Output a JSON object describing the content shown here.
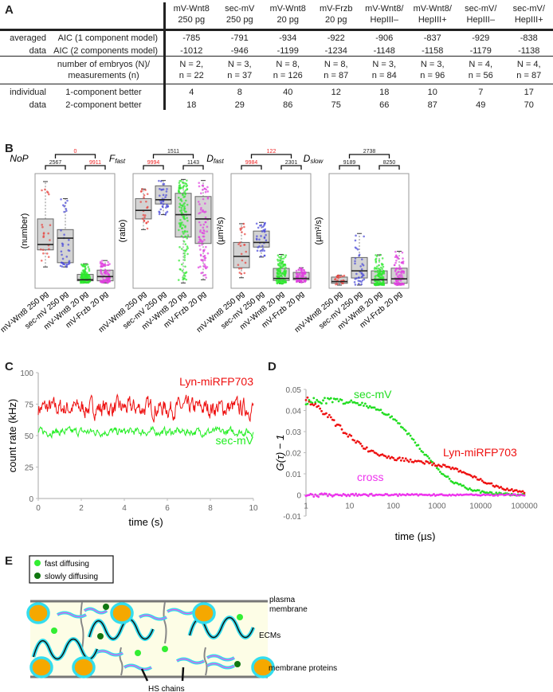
{
  "panels": {
    "A": "A",
    "B": "B",
    "C": "C",
    "D": "D",
    "E": "E"
  },
  "tableA": {
    "columns": [
      {
        "l1": "mV-Wnt8",
        "l2": "250 pg"
      },
      {
        "l1": "sec-mV",
        "l2": "250 pg"
      },
      {
        "l1": "mV-Wnt8",
        "l2": "20 pg"
      },
      {
        "l1": "mV-Frzb",
        "l2": "20 pg"
      },
      {
        "l1": "mV-Wnt8/",
        "l2": "HepIII–"
      },
      {
        "l1": "mV-Wnt8/",
        "l2": "HepIII+"
      },
      {
        "l1": "sec-mV/",
        "l2": "HepIII–"
      },
      {
        "l1": "sec-mV/",
        "l2": "HepIII+"
      }
    ],
    "group1_l1": "averaged",
    "group1_l2": "data",
    "row_aic1": "AIC (1 component model)",
    "row_aic2": "AIC (2 components model)",
    "aic1": [
      "-785",
      "-791",
      "-934",
      "-922",
      "-906",
      "-837",
      "-929",
      "-838"
    ],
    "aic2": [
      "-1012",
      "-946",
      "-1199",
      "-1234",
      "-1148",
      "-1158",
      "-1179",
      "-1138"
    ],
    "row_n_l1": "number of embryos (N)/",
    "row_n_l2": "measurements (n)",
    "N": [
      "N = 2,",
      "N = 3,",
      "N = 8,",
      "N = 8,",
      "N = 3,",
      "N = 3,",
      "N = 4,",
      "N = 4,"
    ],
    "n": [
      "n = 22",
      "n = 37",
      "n = 126",
      "n = 87",
      "n = 84",
      "n = 96",
      "n = 56",
      "n = 87"
    ],
    "group2_l1": "individual",
    "group2_l2": "data",
    "row_1c": "1-component better",
    "row_2c": "2-component better",
    "better1": [
      "4",
      "8",
      "40",
      "12",
      "18",
      "10",
      "7",
      "17"
    ],
    "better2": [
      "18",
      "29",
      "86",
      "75",
      "66",
      "87",
      "49",
      "70"
    ]
  },
  "chart_data": [
    {
      "type": "box",
      "panel": "B",
      "categories": [
        "mV-Wnt8 250 pg",
        "sec-mV 250 pg",
        "mV-Wnt8 20 pg",
        "mV-Frzb 20 pg"
      ],
      "colors": [
        "#e8413c",
        "#4a4ad8",
        "#2ee82e",
        "#e040e0"
      ],
      "plots": [
        {
          "title": "NoP",
          "title_sub": "",
          "ylabel": "(number)",
          "ylim": [
            0,
            5
          ],
          "boxes": [
            {
              "q1": 1.65,
              "med": 1.9,
              "q3": 3.1,
              "lo": 0.85,
              "hi": 4.85
            },
            {
              "q1": 1.05,
              "med": 2.2,
              "q3": 2.6,
              "lo": 0.85,
              "hi": 4.05
            },
            {
              "q1": 0.2,
              "med": 0.25,
              "q3": 0.5,
              "lo": 0.1,
              "hi": 1.0
            },
            {
              "q1": 0.2,
              "med": 0.4,
              "q3": 0.7,
              "lo": 0.1,
              "hi": 1.15
            }
          ],
          "brackets": [
            {
              "a": 0,
              "b": 1,
              "label": "2567",
              "red": false,
              "level": 0
            },
            {
              "a": 2,
              "b": 3,
              "label": "9911",
              "red": true,
              "level": 0
            },
            {
              "a": 0.5,
              "b": 2.5,
              "label": "0",
              "red": true,
              "level": 1
            }
          ]
        },
        {
          "title": "F",
          "title_sub": "fast",
          "ylabel": "(ratio)",
          "ylim": [
            0,
            1
          ],
          "boxes": [
            {
              "q1": 0.62,
              "med": 0.7,
              "q3": 0.81,
              "lo": 0.52,
              "hi": 0.9
            },
            {
              "q1": 0.76,
              "med": 0.8,
              "q3": 0.93,
              "lo": 0.66,
              "hi": 0.98
            },
            {
              "q1": 0.45,
              "med": 0.66,
              "q3": 0.86,
              "lo": 0.02,
              "hi": 0.99
            },
            {
              "q1": 0.39,
              "med": 0.62,
              "q3": 0.83,
              "lo": 0.05,
              "hi": 0.98
            }
          ],
          "brackets": [
            {
              "a": 0,
              "b": 1,
              "label": "9994",
              "red": true,
              "level": 0
            },
            {
              "a": 2,
              "b": 3,
              "label": "1143",
              "red": false,
              "level": 0
            },
            {
              "a": 0.5,
              "b": 2.5,
              "label": "1511",
              "red": false,
              "level": 1
            }
          ]
        },
        {
          "title": "D",
          "title_sub": "fast",
          "ylabel": "(µm²/s)",
          "ylim": [
            0,
            8
          ],
          "boxes": [
            {
              "q1": 1.3,
              "med": 2.15,
              "q3": 3.2,
              "lo": 0.55,
              "hi": 4.6
            },
            {
              "q1": 2.85,
              "med": 3.2,
              "q3": 4.05,
              "lo": 2.1,
              "hi": 4.7
            },
            {
              "q1": 0.35,
              "med": 0.5,
              "q3": 1.25,
              "lo": 0.1,
              "hi": 2.3
            },
            {
              "q1": 0.4,
              "med": 0.5,
              "q3": 0.95,
              "lo": 0.2,
              "hi": 1.3
            }
          ],
          "brackets": [
            {
              "a": 0,
              "b": 1,
              "label": "9984",
              "red": true,
              "level": 0
            },
            {
              "a": 2,
              "b": 3,
              "label": "2301",
              "red": false,
              "level": 0
            },
            {
              "a": 0.5,
              "b": 2.5,
              "label": "122",
              "red": true,
              "level": 1
            }
          ]
        },
        {
          "title": "D",
          "title_sub": "slow",
          "ylabel": "(µm²/s)",
          "ylim": [
            0,
            0.6
          ],
          "boxes": [
            {
              "q1": 0.01,
              "med": 0.02,
              "q3": 0.045,
              "lo": 0.0,
              "hi": 0.055
            },
            {
              "q1": 0.04,
              "med": 0.08,
              "q3": 0.155,
              "lo": 0.0,
              "hi": 0.29
            },
            {
              "q1": 0.01,
              "med": 0.03,
              "q3": 0.08,
              "lo": 0.0,
              "hi": 0.17
            },
            {
              "q1": 0.01,
              "med": 0.035,
              "q3": 0.095,
              "lo": 0.0,
              "hi": 0.19
            }
          ],
          "brackets": [
            {
              "a": 0,
              "b": 1,
              "label": "9189",
              "red": false,
              "level": 0
            },
            {
              "a": 2,
              "b": 3,
              "label": "8250",
              "red": false,
              "level": 0
            },
            {
              "a": 0.5,
              "b": 2.5,
              "label": "2738",
              "red": false,
              "level": 1
            }
          ]
        }
      ]
    },
    {
      "type": "line",
      "panel": "C",
      "xlabel": "time (s)",
      "ylabel": "count rate (kHz)",
      "xlim": [
        0,
        10
      ],
      "ylim": [
        0,
        100
      ],
      "xticks": [
        "0",
        "2",
        "4",
        "6",
        "8",
        "10"
      ],
      "yticks": [
        "0",
        "25",
        "50",
        "75",
        "100"
      ],
      "series": [
        {
          "name": "Lyn-miRFP703",
          "color": "#ee1111",
          "mean": 72,
          "noise": 7
        },
        {
          "name": "sec-mV",
          "color": "#22ee22",
          "mean": 53,
          "noise": 3
        }
      ]
    },
    {
      "type": "scatter",
      "panel": "D",
      "xlabel": "time (µs)",
      "ylabel": "G(τ) − 1",
      "xscale": "log",
      "xlim": [
        1,
        100000
      ],
      "ylim": [
        -0.01,
        0.05
      ],
      "xticks": [
        "1",
        "10",
        "100",
        "1000",
        "10000",
        "100000"
      ],
      "yticks": [
        "-0.01",
        "0",
        "0.01",
        "0.02",
        "0.03",
        "0.04",
        "0.05"
      ],
      "series": [
        {
          "name": "sec-mV",
          "color": "#22dd22",
          "G0": 0.045,
          "tau": 400
        },
        {
          "name": "Lyn-miRFP703",
          "color": "#ee1111",
          "G0": 0.05,
          "tau": 5
        },
        {
          "name": "cross",
          "color": "#ee33ee",
          "G0": 0.0,
          "tau": 1
        }
      ]
    }
  ],
  "panelE": {
    "legend_fast": "fast diffusing",
    "legend_slow": "slowly diffusing",
    "label_pm_1": "plasma",
    "label_pm_2": "membrane",
    "label_ecm": "ECMs",
    "label_mp": "membrane proteins",
    "label_hs": "HS chains",
    "colors": {
      "fast": "#33ee33",
      "slow": "#117711",
      "protein": "#f5a800",
      "proteinRing": "#33ddee",
      "bg": "#fdfde6",
      "membrane": "#777777"
    }
  }
}
